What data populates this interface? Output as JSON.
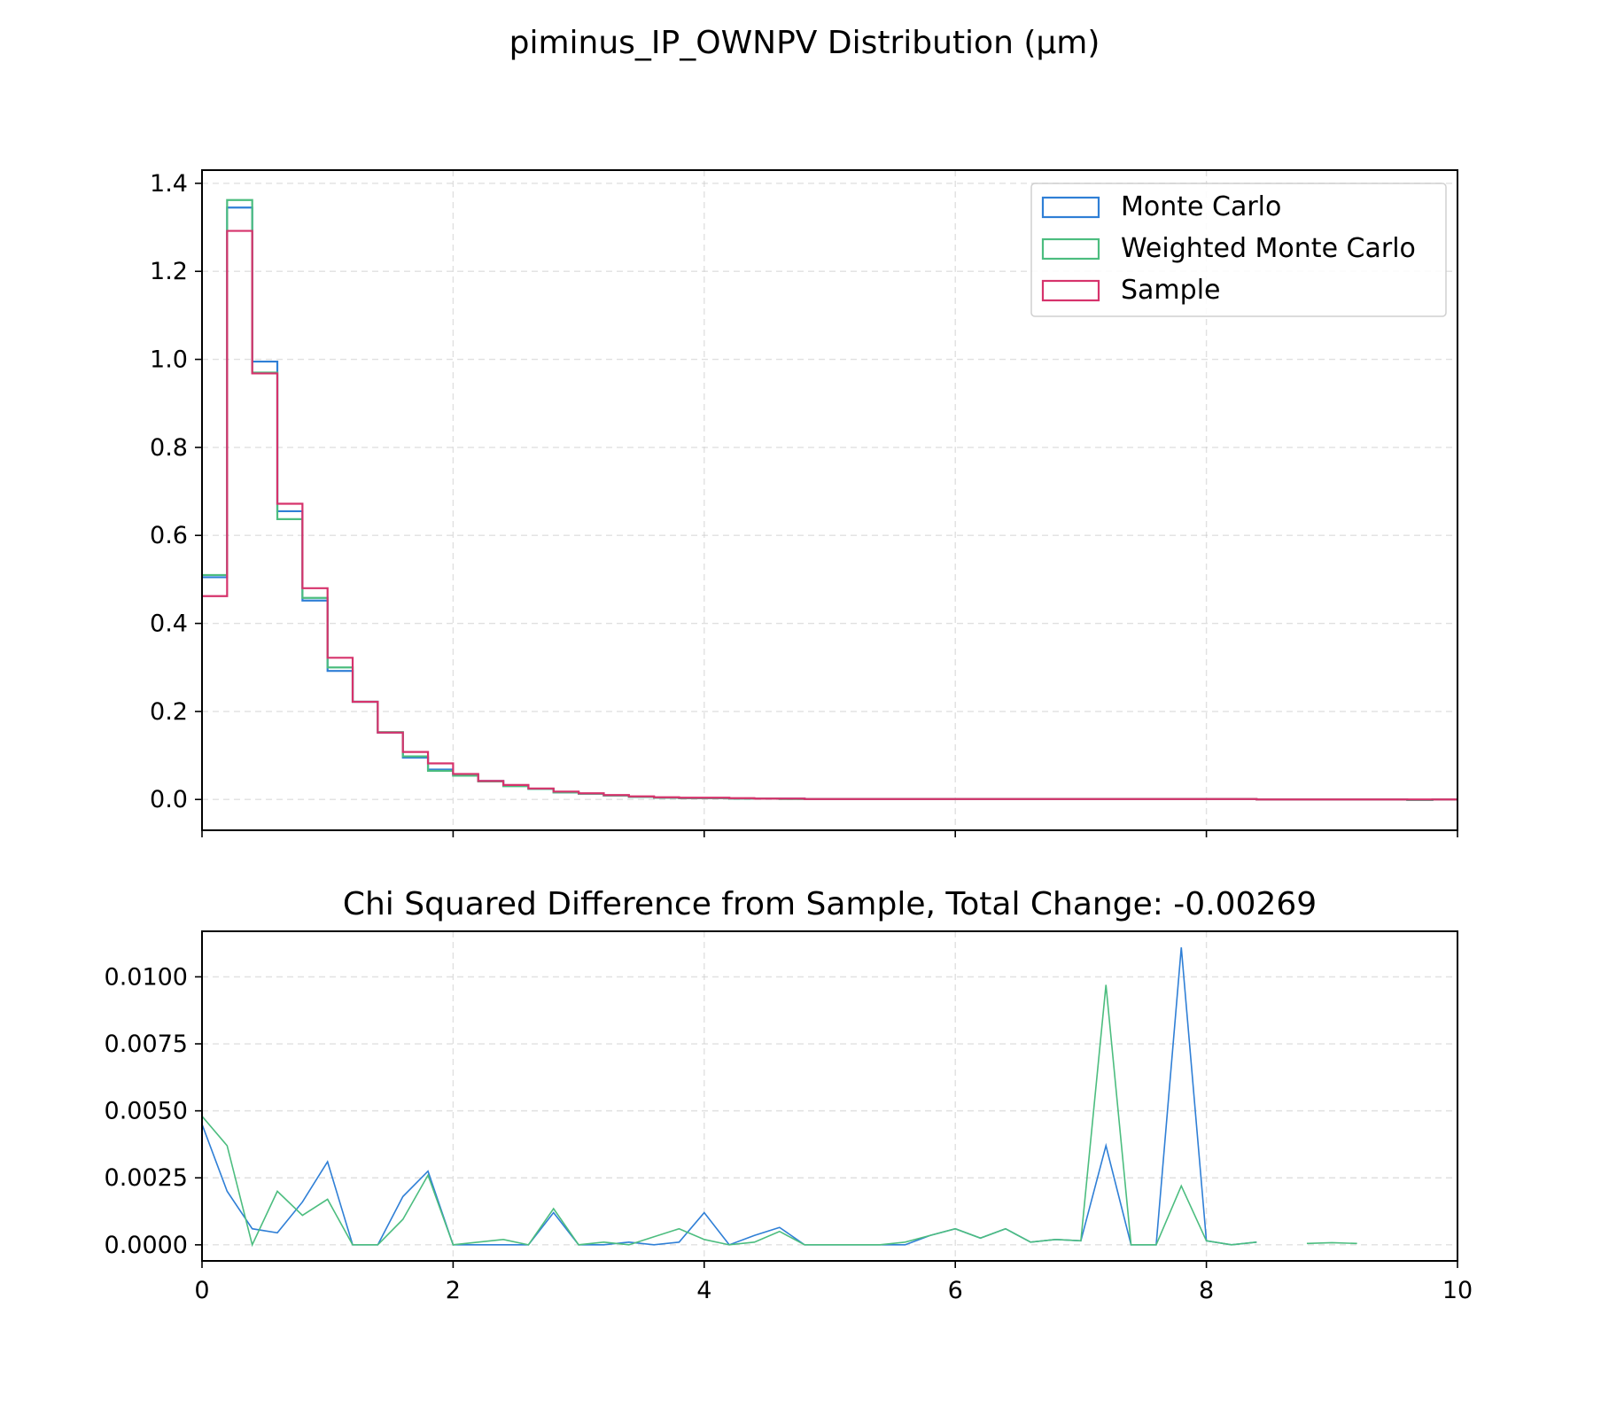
{
  "title": "piminus_IP_OWNPV Distribution (µm)",
  "colors": {
    "mc": "#2f7fd6",
    "wmc": "#4cbd7f",
    "sample": "#d6336c",
    "grid": "#cccccc"
  },
  "chart_data": [
    {
      "type": "line",
      "subtype": "step-histogram",
      "title": "",
      "xlabel": "",
      "ylabel": "",
      "xlim": [
        0,
        10
      ],
      "ylim": [
        -0.07,
        1.43
      ],
      "yticks": [
        0.0,
        0.2,
        0.4,
        0.6,
        0.8,
        1.0,
        1.2,
        1.4
      ],
      "ytick_labels": [
        "0.0",
        "0.2",
        "0.4",
        "0.6",
        "0.8",
        "1.0",
        "1.2",
        "1.4"
      ],
      "xticks": [
        0,
        2,
        4,
        6,
        8,
        10
      ],
      "grid": true,
      "legend_position": "top-right",
      "bin_edges": [
        0.0,
        0.2,
        0.4,
        0.6,
        0.8,
        1.0,
        1.2,
        1.4,
        1.6,
        1.8,
        2.0,
        2.2,
        2.4,
        2.6,
        2.8,
        3.0,
        3.2,
        3.4,
        3.6,
        3.8,
        4.0,
        4.2,
        4.4,
        4.6,
        4.8,
        5.0,
        5.2,
        5.4,
        5.6,
        5.8,
        6.0,
        6.2,
        6.4,
        6.6,
        6.8,
        7.0,
        7.2,
        7.4,
        7.6,
        7.8,
        8.0,
        8.2,
        8.4,
        8.6,
        8.8,
        9.0,
        9.2,
        9.4,
        9.6,
        9.8,
        10.0
      ],
      "series": [
        {
          "name": "Monte Carlo",
          "color": "#2f7fd6",
          "values": [
            0.505,
            1.345,
            0.995,
            0.655,
            0.452,
            0.292,
            0.222,
            0.152,
            0.095,
            0.068,
            0.056,
            0.042,
            0.031,
            0.024,
            0.016,
            0.013,
            0.009,
            0.006,
            0.004,
            0.003,
            0.003,
            0.002,
            0.002,
            0.002,
            0.001,
            0.001,
            0.001,
            0.001,
            0.001,
            0.001,
            0.001,
            0.001,
            0.001,
            0.001,
            0.001,
            0.001,
            0.001,
            0.001,
            0.001,
            0.001,
            0.001,
            0.001,
            0.0,
            0.0,
            0.0,
            0.0,
            0.0,
            0.0,
            -0.001,
            0.0
          ]
        },
        {
          "name": "Weighted Monte Carlo",
          "color": "#4cbd7f",
          "values": [
            0.51,
            1.362,
            0.97,
            0.637,
            0.458,
            0.3,
            0.222,
            0.153,
            0.098,
            0.065,
            0.054,
            0.041,
            0.03,
            0.024,
            0.016,
            0.013,
            0.009,
            0.006,
            0.004,
            0.003,
            0.003,
            0.002,
            0.002,
            0.001,
            0.001,
            0.001,
            0.001,
            0.001,
            0.001,
            0.001,
            0.001,
            0.001,
            0.001,
            0.001,
            0.001,
            0.001,
            0.001,
            0.001,
            0.001,
            0.001,
            0.001,
            0.001,
            0.0,
            0.0,
            0.0,
            0.0,
            0.0,
            0.0,
            -0.001,
            0.0
          ]
        },
        {
          "name": "Sample",
          "color": "#d6336c",
          "values": [
            0.462,
            1.292,
            0.968,
            0.672,
            0.48,
            0.322,
            0.222,
            0.152,
            0.108,
            0.082,
            0.058,
            0.042,
            0.033,
            0.025,
            0.018,
            0.014,
            0.01,
            0.007,
            0.005,
            0.004,
            0.004,
            0.003,
            0.002,
            0.002,
            0.001,
            0.001,
            0.001,
            0.001,
            0.001,
            0.001,
            0.001,
            0.001,
            0.001,
            0.001,
            0.001,
            0.001,
            0.001,
            0.001,
            0.001,
            0.001,
            0.001,
            0.001,
            0.0,
            0.0,
            0.0,
            0.0,
            0.0,
            0.0,
            0.0,
            0.0
          ]
        }
      ]
    },
    {
      "type": "line",
      "title": "Chi Squared Difference from Sample, Total Change: -0.00269",
      "xlabel": "",
      "ylabel": "",
      "xlim": [
        0,
        10
      ],
      "ylim": [
        -0.0006,
        0.0117
      ],
      "xticks": [
        0,
        2,
        4,
        6,
        8,
        10
      ],
      "xtick_labels": [
        "0",
        "2",
        "4",
        "6",
        "8",
        "10"
      ],
      "yticks": [
        0.0,
        0.0025,
        0.005,
        0.0075,
        0.01
      ],
      "ytick_labels": [
        "0.0000",
        "0.0025",
        "0.0050",
        "0.0075",
        "0.0100"
      ],
      "grid": true,
      "x": [
        0.0,
        0.2,
        0.4,
        0.6,
        0.8,
        1.0,
        1.2,
        1.4,
        1.6,
        1.8,
        2.0,
        2.2,
        2.4,
        2.6,
        2.8,
        3.0,
        3.2,
        3.4,
        3.6,
        3.8,
        4.0,
        4.2,
        4.4,
        4.6,
        4.8,
        5.0,
        5.2,
        5.4,
        5.6,
        5.8,
        6.0,
        6.2,
        6.4,
        6.6,
        6.8,
        7.0,
        7.2,
        7.4,
        7.6,
        7.8,
        8.0,
        8.2,
        8.4,
        8.6,
        8.8,
        9.0,
        9.2
      ],
      "series": [
        {
          "color": "#2f7fd6",
          "values": [
            0.0045,
            0.002,
            0.0006,
            0.00045,
            0.0016,
            0.0031,
            0.0,
            0.0,
            0.0018,
            0.00275,
            0.0,
            0.0,
            0.0,
            0.0,
            0.0012,
            0.0,
            0.0,
            0.0001,
            0.0,
            0.0001,
            0.0012,
            0.0,
            0.00035,
            0.00065,
            0.0,
            0.0,
            0.0,
            0.0,
            0.0,
            0.00035,
            0.0006,
            0.00025,
            0.0006,
            0.0001,
            0.0002,
            0.00015,
            0.0037,
            0.0,
            0.0,
            0.0111,
            0.00015,
            0.0,
            0.0001,
            null,
            null,
            null,
            null
          ]
        },
        {
          "color": "#4cbd7f",
          "values": [
            0.0048,
            0.0037,
            0.0,
            0.002,
            0.0011,
            0.0017,
            0.0,
            0.0,
            0.00095,
            0.0026,
            0.0,
            0.0001,
            0.0002,
            0.0,
            0.00135,
            0.0,
            0.0001,
            0.0,
            0.0003,
            0.0006,
            0.0002,
            0.0,
            0.0001,
            0.0005,
            0.0,
            0.0,
            0.0,
            0.0,
            0.0001,
            0.00035,
            0.0006,
            0.00025,
            0.0006,
            0.0001,
            0.0002,
            0.00015,
            0.0097,
            0.0,
            0.0,
            0.0022,
            0.00015,
            0.0,
            0.0001,
            null,
            5e-05,
            8e-05,
            5e-05
          ]
        }
      ]
    }
  ]
}
